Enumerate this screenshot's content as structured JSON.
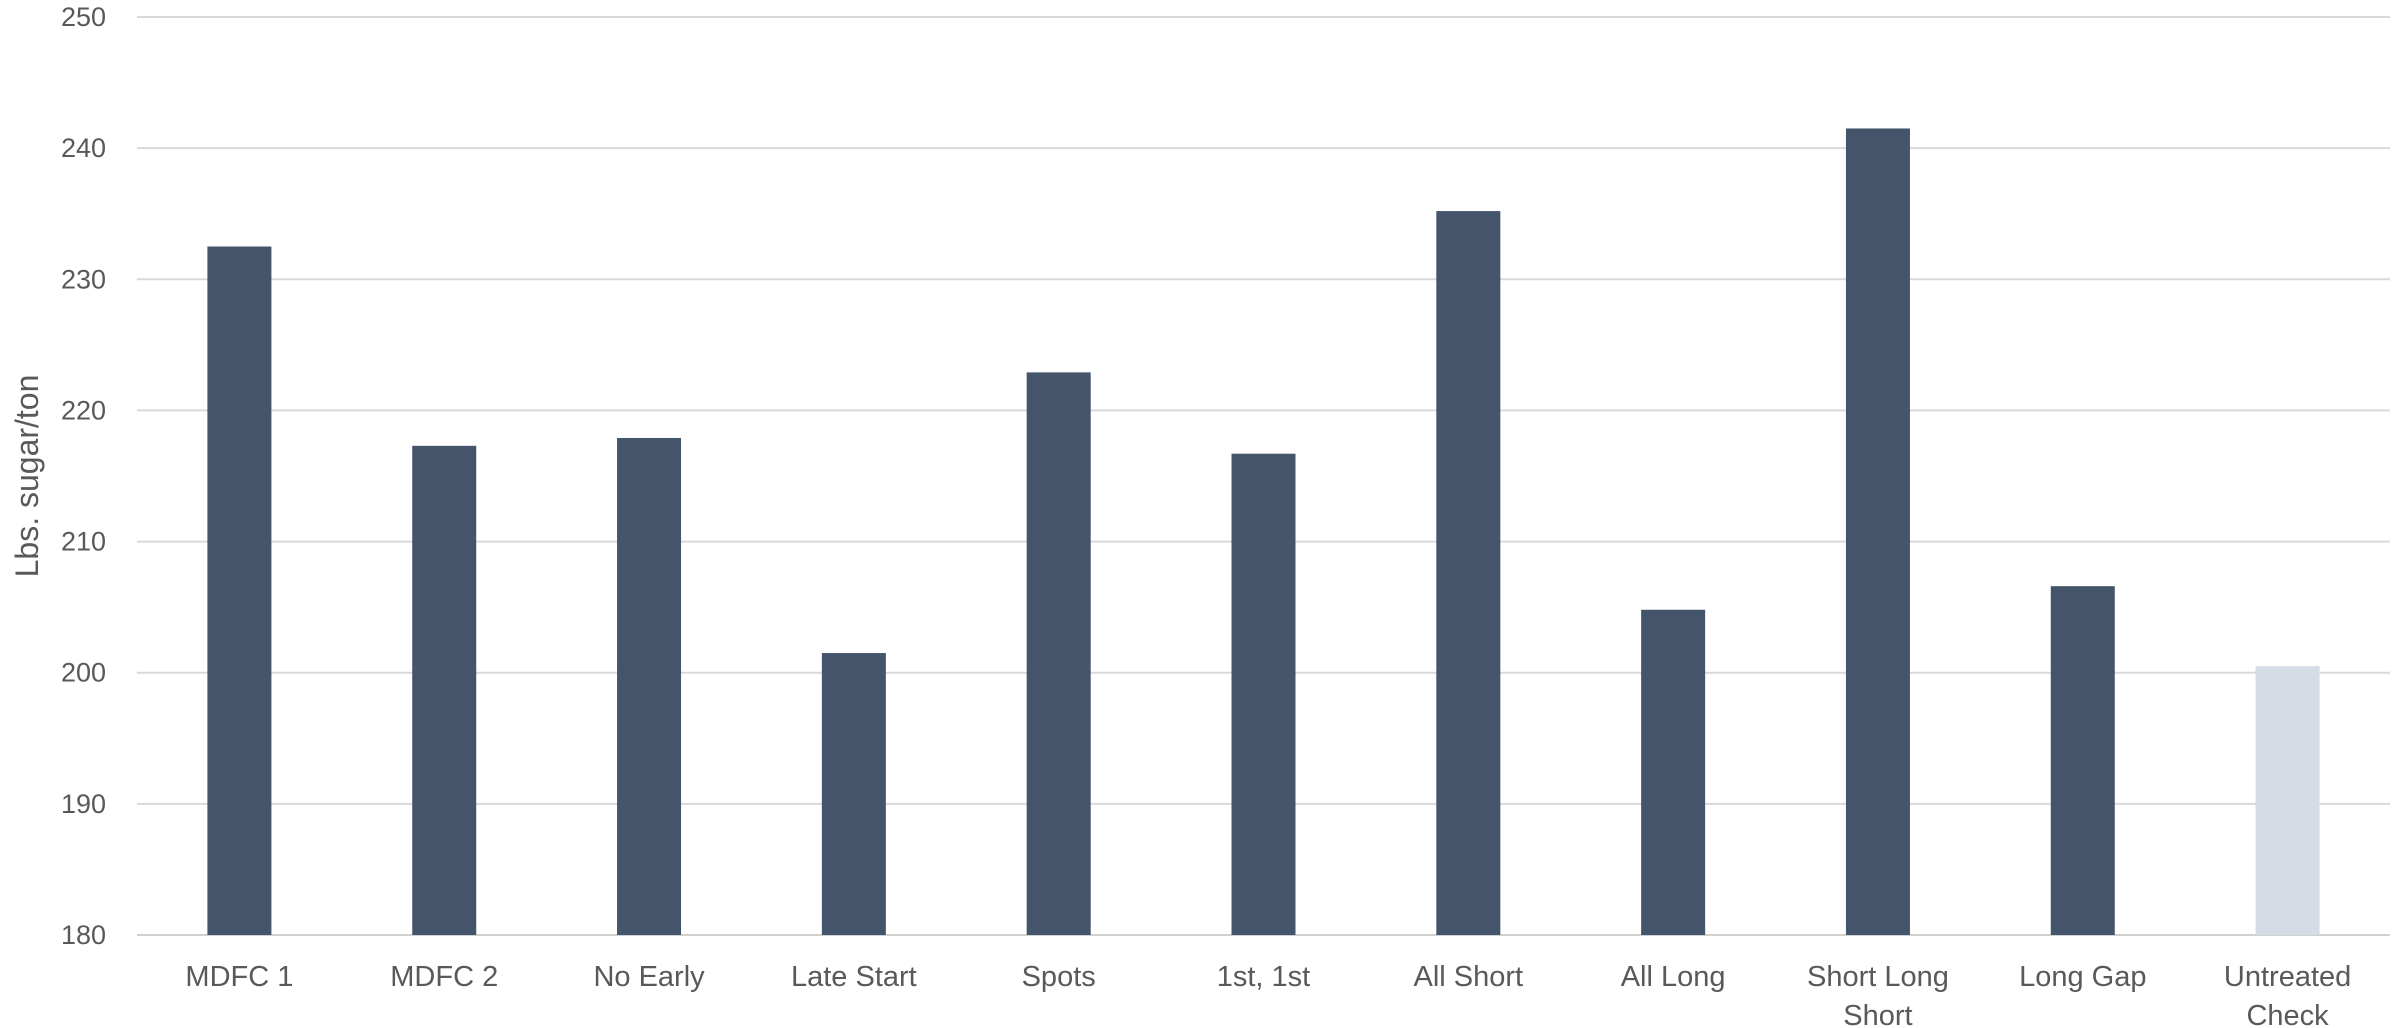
{
  "chart_data": {
    "type": "bar",
    "title": "",
    "xlabel": "",
    "ylabel": "Lbs. sugar/ton",
    "ylim": [
      180,
      250
    ],
    "yticks": [
      180,
      190,
      200,
      210,
      220,
      230,
      240,
      250
    ],
    "grid": true,
    "legend": "none",
    "categories": [
      [
        "MDFC 1"
      ],
      [
        "MDFC 2"
      ],
      [
        "No Early"
      ],
      [
        "Late Start"
      ],
      [
        "Spots"
      ],
      [
        "1st, 1st"
      ],
      [
        "All Short"
      ],
      [
        "All Long"
      ],
      [
        "Short Long",
        "Short"
      ],
      [
        "Long Gap"
      ],
      [
        "Untreated",
        "Check"
      ]
    ],
    "values": [
      232.5,
      217.3,
      217.9,
      201.5,
      222.9,
      216.7,
      235.2,
      204.8,
      241.5,
      206.6,
      200.5
    ],
    "colors": {
      "bar": "#44546a",
      "bar_highlight": "#d6dce5"
    },
    "highlight_index": 10
  }
}
